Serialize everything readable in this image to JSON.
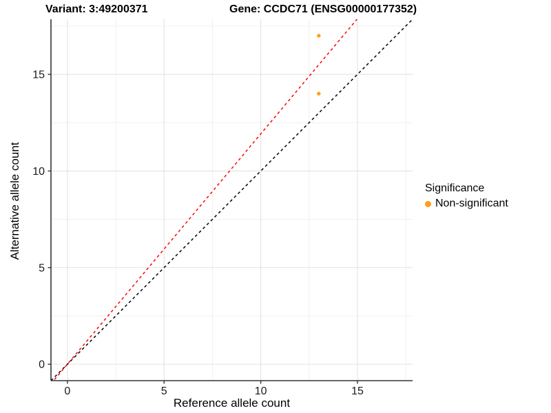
{
  "title": {
    "variant": "Variant: 3:49200371",
    "gene": "Gene: CCDC71 (ENSG00000177352)"
  },
  "axes": {
    "x": {
      "label": "Reference allele count",
      "range": [
        -0.85,
        17.85
      ],
      "major_ticks": [
        0,
        5,
        10,
        15
      ],
      "minor_ticks": [
        2.5,
        7.5,
        12.5,
        17.5
      ]
    },
    "y": {
      "label": "Alternative allele count",
      "range": [
        -0.85,
        17.85
      ],
      "major_ticks": [
        0,
        5,
        10,
        15
      ],
      "minor_ticks": [
        2.5,
        7.5,
        12.5,
        17.5
      ]
    }
  },
  "legend": {
    "title": "Significance",
    "items": [
      {
        "label": "Non-significant",
        "color": "#FF9E1B"
      }
    ]
  },
  "colors": {
    "point": "#FF9E1B",
    "identity_line": "#000000",
    "fit_line": "#FF0000",
    "major_grid": "#E2E2E2",
    "minor_grid": "#F0F0F0",
    "axis_line": "#333333",
    "tick_text": "#1a1a1a"
  },
  "chart_data": {
    "type": "scatter",
    "title": "Variant: 3:49200371   Gene: CCDC71 (ENSG00000177352)",
    "xlabel": "Reference allele count",
    "ylabel": "Alternative allele count",
    "xlim": [
      -0.85,
      17.85
    ],
    "ylim": [
      -0.85,
      17.85
    ],
    "grid": true,
    "legend_position": "right",
    "series": [
      {
        "name": "Non-significant",
        "color": "#FF9E1B",
        "points": [
          {
            "x": 13,
            "y": 17
          },
          {
            "x": 13,
            "y": 14
          }
        ]
      }
    ],
    "lines": [
      {
        "name": "identity",
        "slope": 1.0,
        "intercept": 0,
        "color": "#000000",
        "style": "dashed"
      },
      {
        "name": "allelic-proportion-fit",
        "slope": 1.192,
        "intercept": 0,
        "color": "#FF0000",
        "style": "dashed"
      }
    ]
  }
}
